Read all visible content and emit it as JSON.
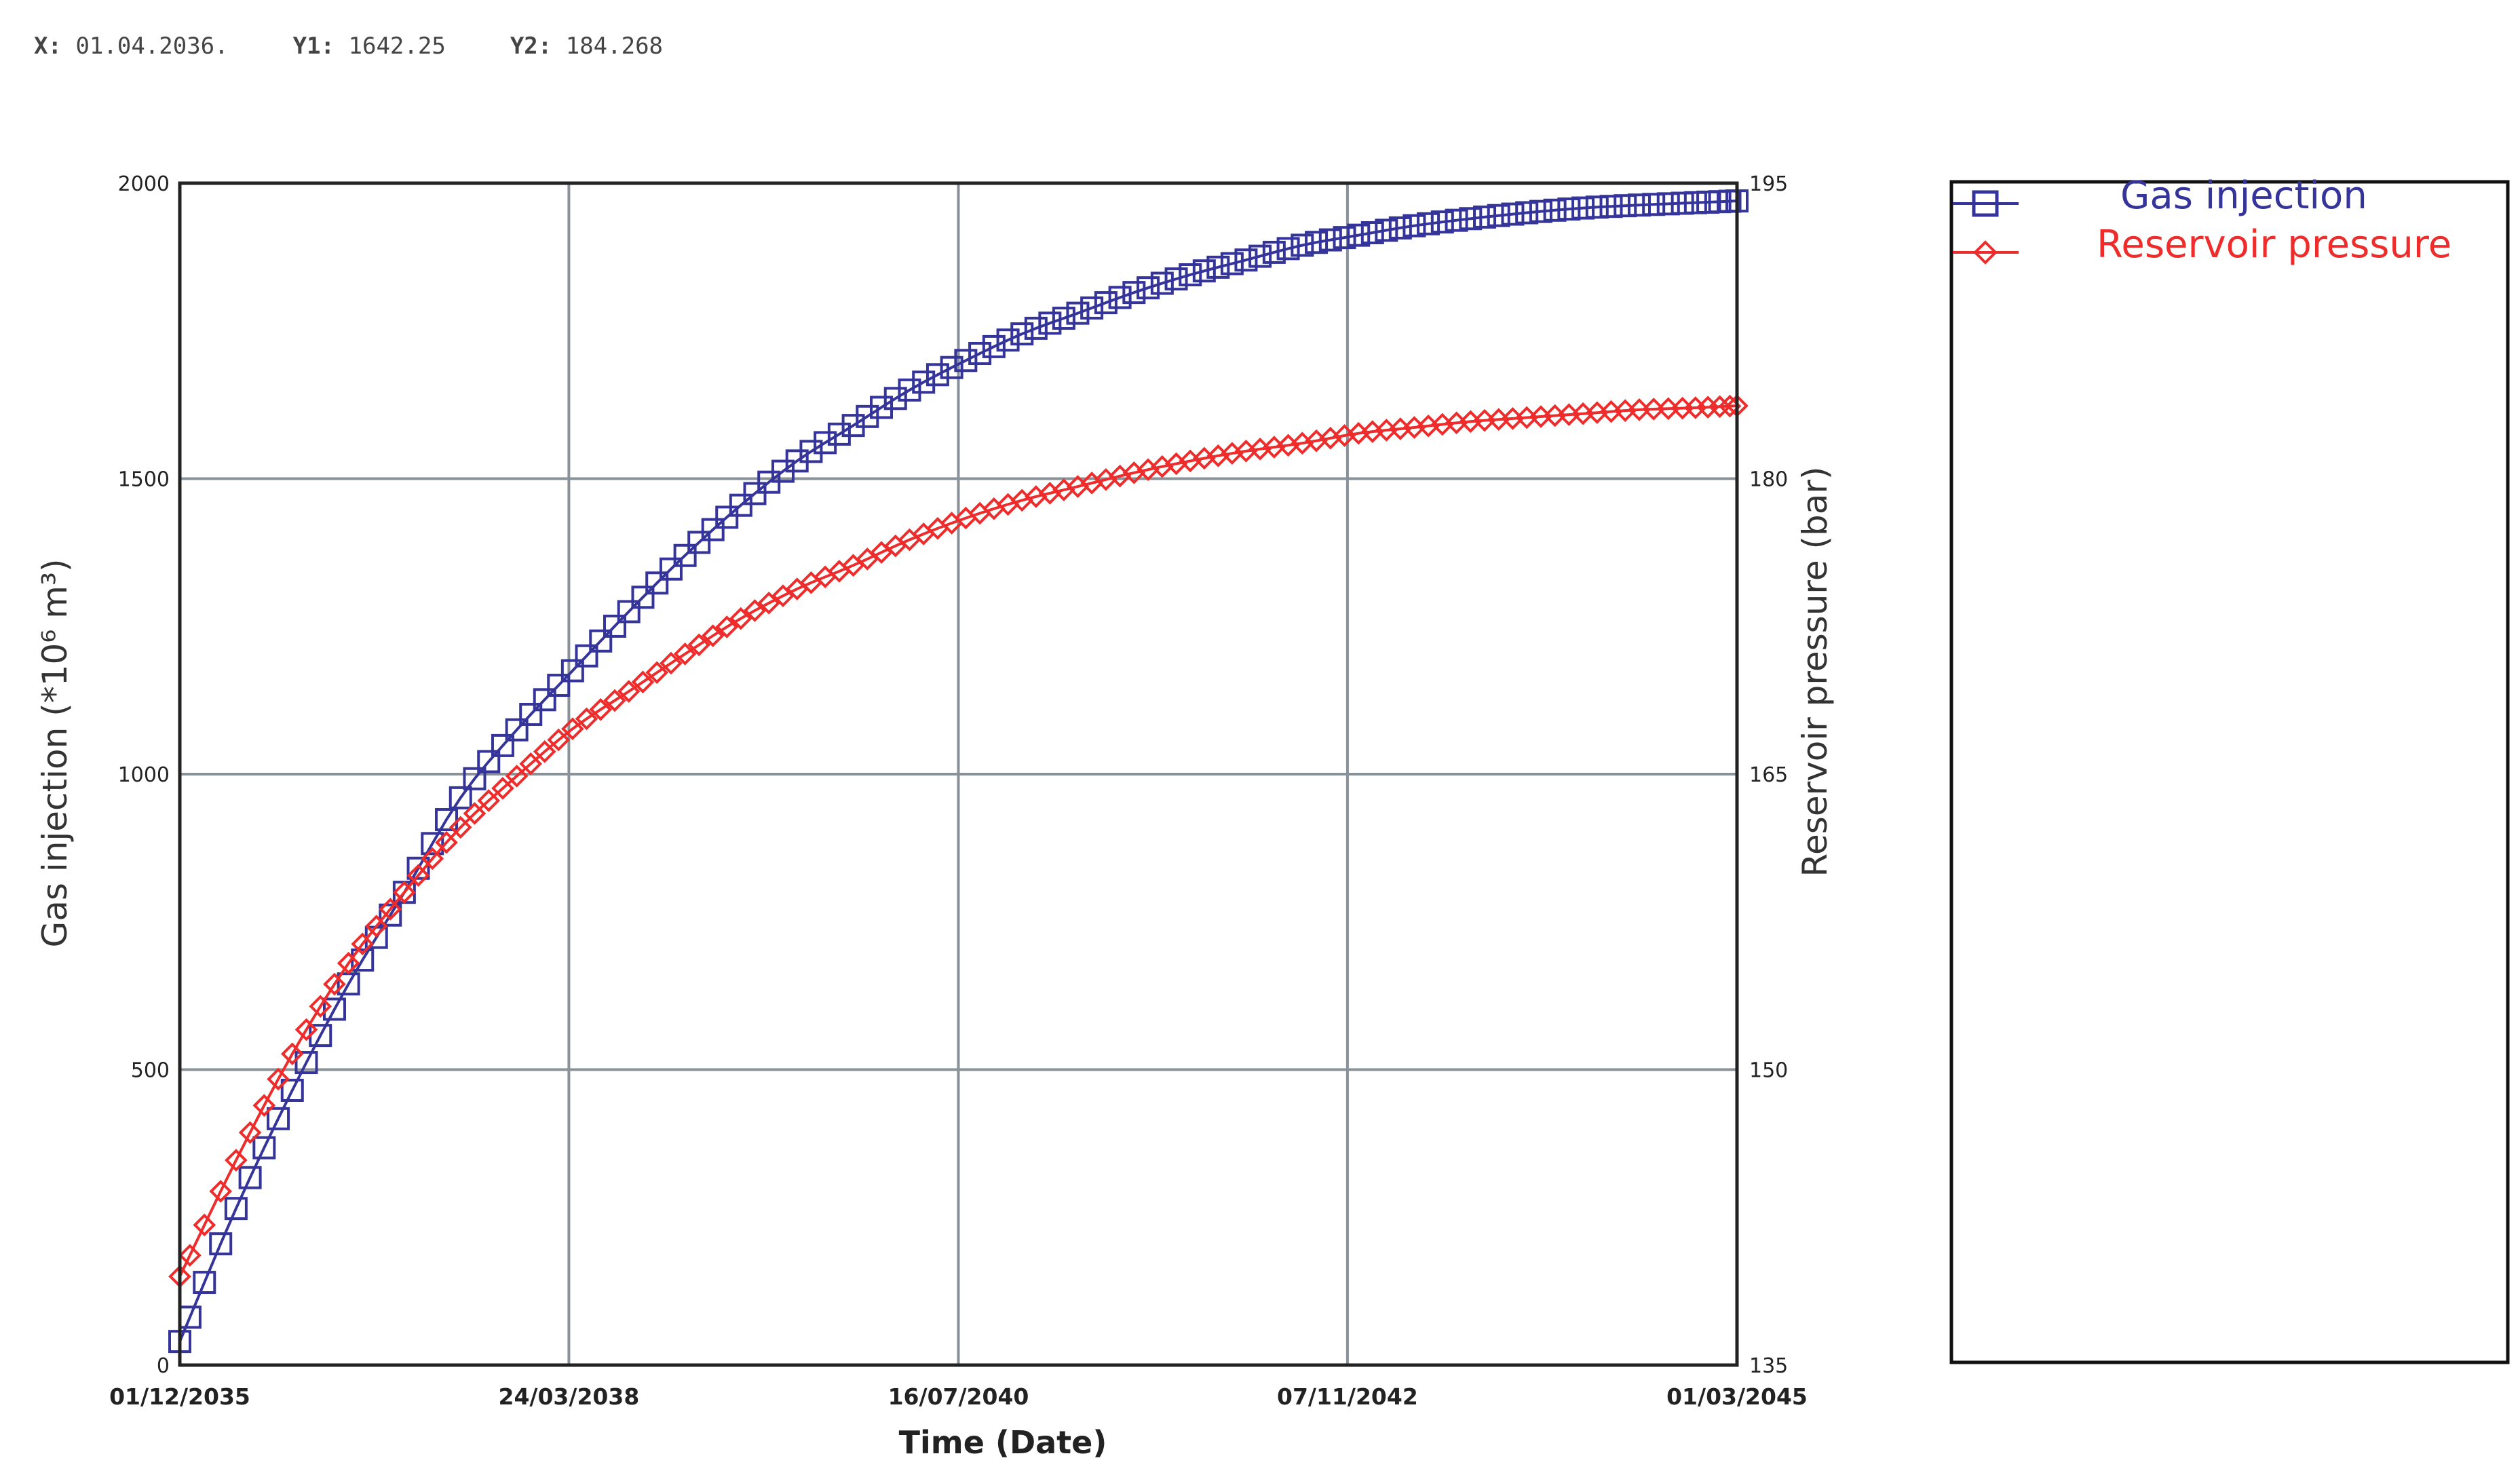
{
  "readout": {
    "x_label": "X:",
    "x_value": "01.04.2036.",
    "y1_label": "Y1:",
    "y1_value": "1642.25",
    "y2_label": "Y2:",
    "y2_value": "184.268"
  },
  "chart_data": {
    "type": "line",
    "title": "",
    "xlabel": "Time (Date)",
    "ylabel": "Gas injection   (*10⁶ m³)",
    "y2label": "Reservoir pressure (bar)",
    "x_tick_labels": [
      "01/12/2035",
      "24/03/2038",
      "16/07/2040",
      "07/11/2042",
      "01/03/2045"
    ],
    "xlim": [
      "2035-12-01",
      "2045-03-01"
    ],
    "ylim": [
      0,
      2000
    ],
    "y_ticks": [
      0,
      500,
      1000,
      1500,
      2000
    ],
    "y2lim": [
      135,
      195
    ],
    "y2_ticks": [
      135,
      150,
      165,
      180,
      195
    ],
    "grid": true,
    "legend_position": "right",
    "series": [
      {
        "name": "Gas injection",
        "axis": "left",
        "marker": "square",
        "color": "#34349a",
        "x": [
          "2035-12-01",
          "2036-04-01",
          "2036-08-01",
          "2036-12-01",
          "2037-04-01",
          "2037-08-01",
          "2037-12-01",
          "2038-04-01",
          "2038-08-01",
          "2038-12-01",
          "2039-04-01",
          "2039-08-01",
          "2039-12-01",
          "2040-04-01",
          "2040-08-01",
          "2040-12-01",
          "2041-04-01",
          "2041-08-01",
          "2041-12-01",
          "2042-04-01",
          "2042-08-01",
          "2042-12-01",
          "2043-04-01",
          "2043-08-01",
          "2043-12-01",
          "2044-04-01",
          "2044-08-01",
          "2044-12-01",
          "2045-03-01"
        ],
        "values": [
          40,
          265,
          465,
          645,
          800,
          960,
          1075,
          1175,
          1275,
          1370,
          1455,
          1530,
          1590,
          1650,
          1700,
          1745,
          1780,
          1815,
          1845,
          1870,
          1895,
          1912,
          1928,
          1940,
          1950,
          1958,
          1963,
          1967,
          1970
        ]
      },
      {
        "name": "Reservoir pressure",
        "axis": "right",
        "marker": "diamond",
        "color": "#ee2c2c",
        "x": [
          "2035-12-01",
          "2036-04-01",
          "2036-08-01",
          "2036-12-01",
          "2037-04-01",
          "2037-08-01",
          "2037-12-01",
          "2038-04-01",
          "2038-08-01",
          "2038-12-01",
          "2039-04-01",
          "2039-08-01",
          "2039-12-01",
          "2040-04-01",
          "2040-08-01",
          "2040-12-01",
          "2041-04-01",
          "2041-08-01",
          "2041-12-01",
          "2042-04-01",
          "2042-08-01",
          "2042-12-01",
          "2043-04-01",
          "2043-08-01",
          "2043-12-01",
          "2044-04-01",
          "2044-08-01",
          "2044-12-01",
          "2045-03-01"
        ],
        "values": [
          139.5,
          145.4,
          150.8,
          155.4,
          159.0,
          162.3,
          164.9,
          167.3,
          169.2,
          171.1,
          172.9,
          174.4,
          175.6,
          176.9,
          178.0,
          178.9,
          179.6,
          180.3,
          180.9,
          181.4,
          181.8,
          182.3,
          182.6,
          182.9,
          183.1,
          183.3,
          183.5,
          183.6,
          183.7
        ]
      }
    ]
  }
}
